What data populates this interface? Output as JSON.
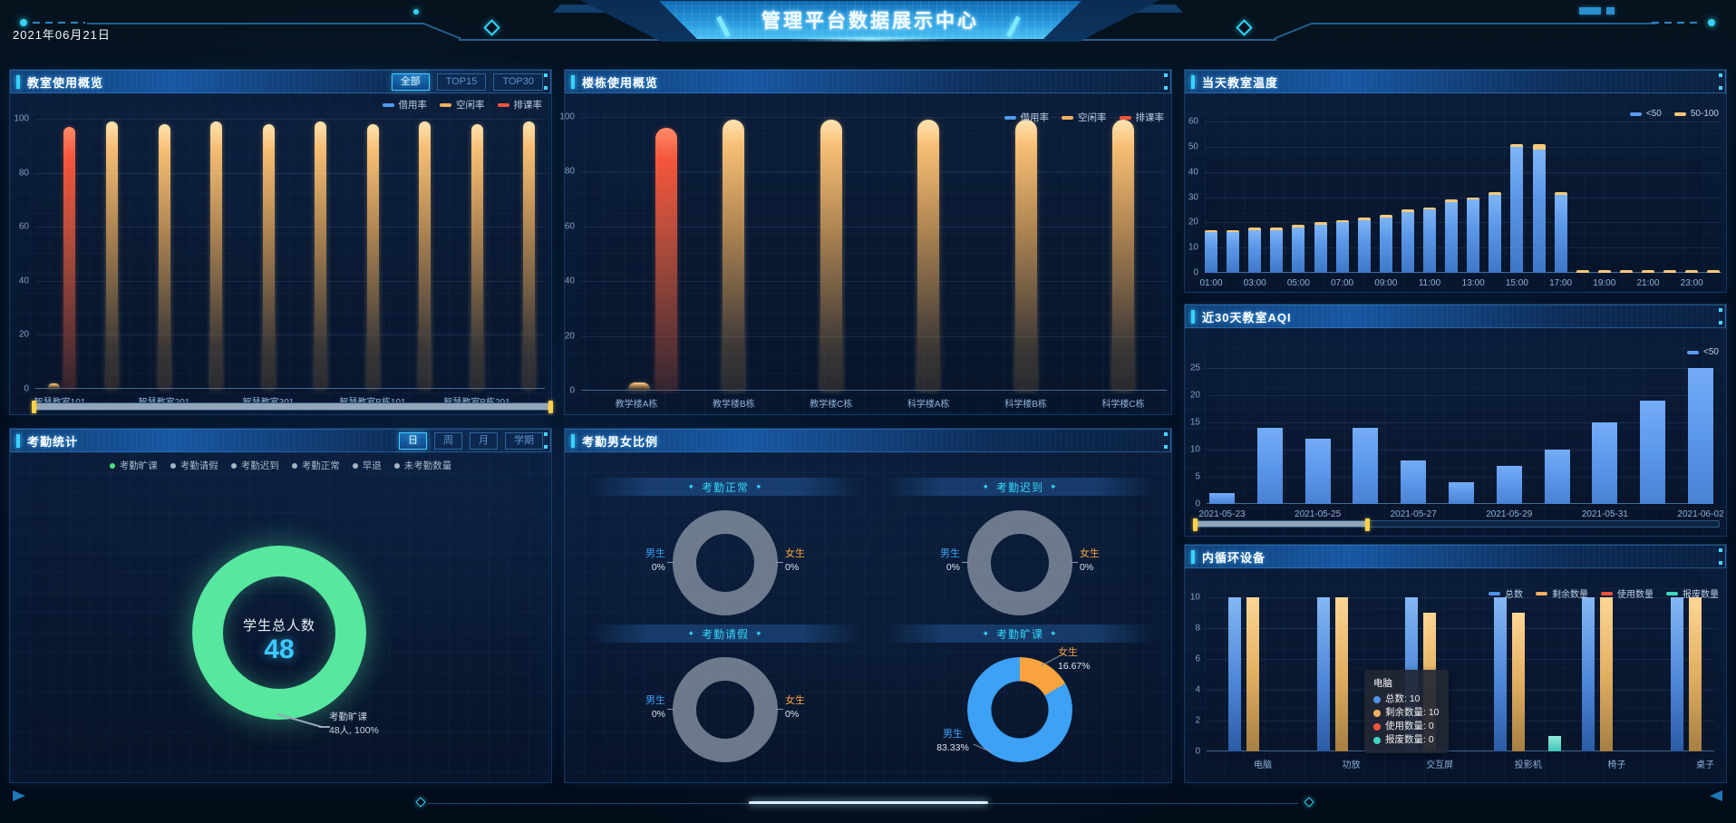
{
  "header": {
    "date": "2021年06月21日",
    "title": "管理平台数据展示中心"
  },
  "colors": {
    "blue": "#4f9bef",
    "orange": "#f0b05f",
    "red": "#f4543c",
    "teal": "#41d6c3",
    "green": "#57e79f",
    "cyan": "#35c3ff",
    "gray_ring": "#8a93a3"
  },
  "panels": {
    "classroom": {
      "title": "教室使用概览",
      "filters": [
        "全部",
        "TOP15",
        "TOP30"
      ],
      "active_filter": "全部",
      "legend": [
        "借用率",
        "空闲率",
        "排课率"
      ]
    },
    "building": {
      "title": "楼栋使用概览",
      "legend": [
        "借用率",
        "空闲率",
        "排课率"
      ]
    },
    "temperature": {
      "title": "当天教室温度",
      "legend": [
        "<50",
        "50-100"
      ]
    },
    "aqi": {
      "title": "近30天教室AQI",
      "legend": [
        "<50"
      ]
    },
    "attendance": {
      "title": "考勤统计",
      "tabs": [
        "日",
        "周",
        "月",
        "学期"
      ],
      "active_tab": "日",
      "legend": [
        "考勤旷课",
        "考勤请假",
        "考勤迟到",
        "考勤正常",
        "早退",
        "未考勤数量"
      ],
      "legend_active_color": "#4ade80",
      "legend_inactive_color": "#a7b4c4",
      "center_label": "学生总人数",
      "center_value": "48",
      "callout_name": "考勤旷课",
      "callout_value": "48人, 100%"
    },
    "gender": {
      "title": "考勤男女比例",
      "male_label": "男生",
      "female_label": "女生"
    },
    "equipment": {
      "title": "内循环设备",
      "legend": [
        "总数",
        "剩余数量",
        "使用数量",
        "报废数量"
      ],
      "tooltip": {
        "title": "电脑",
        "items": [
          {
            "label": "总数",
            "value": "10"
          },
          {
            "label": "剩余数量",
            "value": "10"
          },
          {
            "label": "使用数量",
            "value": "0"
          },
          {
            "label": "报废数量",
            "value": "0"
          }
        ]
      }
    }
  },
  "chart_data": [
    {
      "id": "classroom_usage",
      "type": "bar",
      "title": "教室使用概览",
      "categories_count": 10,
      "ylim": [
        0,
        100
      ],
      "yticks": [
        0,
        20,
        40,
        60,
        80,
        100
      ],
      "x_labels_shown": [
        "智慧教室101",
        "智慧教室201",
        "智慧教室301",
        "智慧教室B栋101",
        "智慧教室B栋201"
      ],
      "series": [
        {
          "name": "借用率",
          "color": "#4f9bef",
          "values": [
            0,
            0,
            0,
            0,
            0,
            0,
            0,
            0,
            0,
            0
          ]
        },
        {
          "name": "空闲率",
          "color": "#f0b05f",
          "values": [
            2,
            99,
            98,
            99,
            98,
            99,
            98,
            99,
            98,
            99
          ]
        },
        {
          "name": "排课率",
          "color": "#f4543c",
          "values": [
            97,
            0,
            0,
            0,
            0,
            0,
            0,
            0,
            0,
            0
          ]
        }
      ],
      "datazoom": [
        0,
        100
      ]
    },
    {
      "id": "building_usage",
      "type": "bar",
      "title": "楼栋使用概览",
      "categories": [
        "教学楼A栋",
        "教学楼B栋",
        "教学楼C栋",
        "科学楼A栋",
        "科学楼B栋",
        "科学楼C栋"
      ],
      "ylim": [
        0,
        100
      ],
      "yticks": [
        0,
        20,
        40,
        60,
        80,
        100
      ],
      "series": [
        {
          "name": "借用率",
          "color": "#4f9bef",
          "values": [
            0,
            0,
            0,
            0,
            0,
            0
          ]
        },
        {
          "name": "空闲率",
          "color": "#f0b05f",
          "values": [
            3,
            99,
            99,
            99,
            99,
            99
          ]
        },
        {
          "name": "排课率",
          "color": "#f4543c",
          "values": [
            96,
            0,
            0,
            0,
            0,
            0
          ]
        }
      ]
    },
    {
      "id": "temperature",
      "type": "bar",
      "stacked": true,
      "title": "当天教室温度",
      "categories_count": 24,
      "ylim": [
        0,
        60
      ],
      "yticks": [
        0,
        10,
        20,
        30,
        40,
        50,
        60
      ],
      "x_labels_shown": [
        "01:00",
        "03:00",
        "05:00",
        "07:00",
        "09:00",
        "11:00",
        "13:00",
        "15:00",
        "17:00",
        "19:00",
        "21:00",
        "23:00"
      ],
      "series": [
        {
          "name": "<50",
          "color": "#5b9bf0",
          "values": [
            16,
            16,
            17,
            17,
            18,
            19,
            20,
            21,
            22,
            24,
            25,
            28,
            29,
            31,
            50,
            49,
            31,
            0,
            0,
            0,
            0,
            0,
            0,
            0
          ]
        },
        {
          "name": "50-100",
          "color": "#f5c878",
          "values": [
            1,
            1,
            1,
            1,
            1,
            1,
            1,
            1,
            1,
            1,
            1,
            1,
            1,
            1,
            1,
            2,
            1,
            1,
            1,
            1,
            1,
            1,
            1,
            1
          ]
        }
      ]
    },
    {
      "id": "aqi",
      "type": "bar",
      "title": "近30天教室AQI",
      "categories_count": 11,
      "ylim": [
        0,
        25
      ],
      "yticks": [
        0,
        5,
        10,
        15,
        20,
        25
      ],
      "x_labels_shown": [
        "2021-05-23",
        "2021-05-25",
        "2021-05-27",
        "2021-05-29",
        "2021-05-31",
        "2021-06-02"
      ],
      "series": [
        {
          "name": "<50",
          "color": "#5b9bf0",
          "values": [
            2,
            14,
            12,
            14,
            8,
            4,
            7,
            10,
            15,
            19,
            25
          ]
        }
      ],
      "datazoom": [
        0,
        33
      ]
    },
    {
      "id": "attendance_donut",
      "type": "pie",
      "title": "考勤统计",
      "center_label": "学生总人数",
      "center_value": 48,
      "slices": [
        {
          "name": "考勤旷课",
          "value": 48,
          "percent": "100%",
          "color": "#57e79f"
        }
      ]
    },
    {
      "id": "gender_ratio",
      "type": "pie",
      "title": "考勤男女比例",
      "male_color": "#3da1f5",
      "female_color": "#f9a43f",
      "empty_color": "#8a93a3",
      "charts": [
        {
          "title": "考勤正常",
          "male": "0%",
          "female": "0%",
          "has_data": false
        },
        {
          "title": "考勤迟到",
          "male": "0%",
          "female": "0%",
          "has_data": false
        },
        {
          "title": "考勤请假",
          "male": "0%",
          "female": "0%",
          "has_data": false
        },
        {
          "title": "考勤旷课",
          "male": "83.33%",
          "female": "16.67%",
          "has_data": true,
          "male_percent": 83.33,
          "female_percent": 16.67
        }
      ]
    },
    {
      "id": "equipment",
      "type": "bar",
      "title": "内循环设备",
      "categories": [
        "电脑",
        "功放",
        "交互屏",
        "投影机",
        "椅子",
        "桌子"
      ],
      "ylim": [
        0,
        10
      ],
      "yticks": [
        0,
        2,
        4,
        6,
        8,
        10
      ],
      "series": [
        {
          "name": "总数",
          "color": "#4f93e8",
          "values": [
            10,
            10,
            10,
            10,
            10,
            10
          ]
        },
        {
          "name": "剩余数量",
          "color": "#f0b05f",
          "values": [
            10,
            10,
            9,
            9,
            10,
            10
          ]
        },
        {
          "name": "使用数量",
          "color": "#f4543c",
          "values": [
            0,
            0,
            0,
            0,
            0,
            0
          ]
        },
        {
          "name": "报废数量",
          "color": "#41d6c3",
          "values": [
            0,
            0,
            0,
            1,
            0,
            0
          ]
        }
      ]
    }
  ]
}
